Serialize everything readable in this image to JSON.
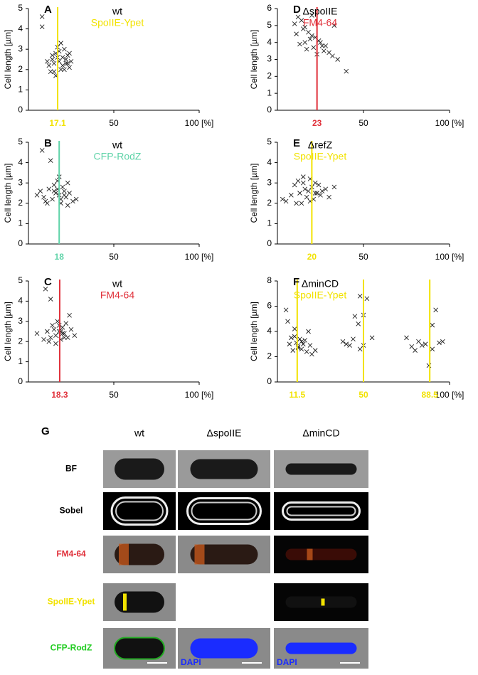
{
  "chart_data": [
    {
      "type": "scatter",
      "panel": "A",
      "title": "wt",
      "subtitle": "SpoIIE-Ypet",
      "subtitle_color": "#f2e200",
      "ylabel": "Cell length [µm]",
      "xlim": [
        0,
        100
      ],
      "ylim": [
        0,
        5
      ],
      "yticks": [
        0,
        1,
        2,
        3,
        4,
        5
      ],
      "xticks": [
        50,
        {
          "value": 100,
          "label": "100 [%]"
        }
      ],
      "vlines": [
        17.1
      ],
      "vline_color": "#f2e200",
      "x": [
        8,
        8,
        12,
        14,
        15,
        16,
        17,
        18,
        19,
        20,
        21,
        22,
        23,
        24,
        25,
        13,
        15,
        18,
        20,
        22,
        24,
        16,
        19,
        21,
        11,
        14,
        23,
        17
      ],
      "y": [
        4.6,
        4.1,
        2.2,
        2.5,
        1.9,
        2.8,
        3.1,
        2.4,
        2.0,
        2.6,
        3.0,
        2.3,
        2.7,
        2.1,
        2.4,
        1.9,
        2.3,
        2.9,
        2.2,
        2.5,
        2.8,
        1.7,
        3.3,
        2.0,
        2.4,
        2.7,
        2.3,
        2.6
      ]
    },
    {
      "type": "scatter",
      "panel": "B",
      "title": "wt",
      "subtitle": "CFP-RodZ",
      "subtitle_color": "#5fd3a8",
      "ylabel": "Cell length [µm]",
      "xlim": [
        0,
        100
      ],
      "ylim": [
        0,
        5
      ],
      "yticks": [
        0,
        1,
        2,
        3,
        4,
        5
      ],
      "xticks": [
        50,
        {
          "value": 100,
          "label": "100 [%]"
        }
      ],
      "vlines": [
        18
      ],
      "vline_color": "#5fd3a8",
      "x": [
        8,
        13,
        5,
        7,
        9,
        11,
        12,
        14,
        15,
        16,
        17,
        18,
        19,
        20,
        21,
        22,
        23,
        24,
        26,
        28,
        10,
        15,
        18,
        21,
        23,
        17,
        19
      ],
      "y": [
        4.6,
        4.1,
        2.4,
        2.6,
        2.3,
        2.0,
        2.7,
        2.2,
        2.9,
        2.5,
        3.1,
        2.4,
        2.0,
        2.8,
        2.6,
        2.3,
        3.0,
        2.5,
        2.1,
        2.2,
        2.1,
        2.6,
        3.3,
        2.4,
        1.9,
        2.7,
        2.2
      ]
    },
    {
      "type": "scatter",
      "panel": "C",
      "title": "wt",
      "subtitle": "FM4-64",
      "subtitle_color": "#e0303a",
      "ylabel": "Cell length [µm]",
      "xlim": [
        0,
        100
      ],
      "ylim": [
        0,
        5
      ],
      "yticks": [
        0,
        1,
        2,
        3,
        4,
        5
      ],
      "xticks": [
        50,
        {
          "value": 100,
          "label": "100 [%]"
        }
      ],
      "vlines": [
        18.3
      ],
      "vline_color": "#e0303a",
      "x": [
        10,
        13,
        5,
        9,
        11,
        13,
        14,
        15,
        16,
        17,
        18,
        19,
        20,
        21,
        22,
        23,
        24,
        25,
        27,
        12,
        16,
        19,
        21,
        18,
        20
      ],
      "y": [
        4.6,
        4.1,
        2.4,
        2.1,
        2.5,
        2.2,
        2.8,
        2.6,
        2.3,
        3.0,
        2.5,
        2.1,
        2.7,
        2.4,
        2.9,
        2.2,
        3.3,
        2.6,
        2.3,
        2.0,
        1.9,
        2.5,
        2.2,
        2.8,
        2.4
      ]
    },
    {
      "type": "scatter",
      "panel": "D",
      "title": "ΔspoIIE",
      "subtitle": "FM4-64",
      "subtitle_color": "#e0303a",
      "ylabel": "Cell length [µm]",
      "xlim": [
        0,
        100
      ],
      "ylim": [
        0,
        6
      ],
      "yticks": [
        0,
        1,
        2,
        3,
        4,
        5,
        6
      ],
      "xticks": [
        50,
        {
          "value": 100,
          "label": "100 [%]"
        }
      ],
      "vlines": [
        23
      ],
      "vline_color": "#e0303a",
      "x": [
        10,
        12,
        14,
        16,
        18,
        20,
        22,
        24,
        26,
        11,
        13,
        15,
        17,
        19,
        21,
        23,
        25,
        27,
        30,
        33,
        35,
        40,
        28,
        32,
        20,
        16
      ],
      "y": [
        5.1,
        5.5,
        5.3,
        4.9,
        4.6,
        5.6,
        4.3,
        4.1,
        3.8,
        4.5,
        3.9,
        4.8,
        3.6,
        4.2,
        3.7,
        3.3,
        4.0,
        3.5,
        3.4,
        5.0,
        3.0,
        2.3,
        3.8,
        3.2,
        4.4,
        4.0
      ]
    },
    {
      "type": "scatter",
      "panel": "E",
      "title": "ΔrefZ",
      "subtitle": "SpoIIE-Ypet",
      "subtitle_color": "#f2e200",
      "ylabel": "Cell length [µm]",
      "xlim": [
        0,
        100
      ],
      "ylim": [
        0,
        5
      ],
      "yticks": [
        0,
        1,
        2,
        3,
        4,
        5
      ],
      "xticks": [
        50,
        {
          "value": 100,
          "label": "100 [%]"
        }
      ],
      "vlines": [
        20
      ],
      "vline_color": "#f2e200",
      "x": [
        3,
        5,
        8,
        10,
        12,
        13,
        14,
        15,
        16,
        17,
        18,
        19,
        20,
        21,
        22,
        23,
        24,
        25,
        26,
        28,
        30,
        33,
        11,
        15,
        19,
        22
      ],
      "y": [
        2.2,
        2.1,
        2.4,
        2.9,
        3.1,
        2.5,
        2.0,
        3.0,
        2.7,
        2.3,
        2.6,
        3.2,
        2.8,
        2.2,
        3.0,
        2.5,
        2.9,
        2.4,
        2.6,
        2.7,
        2.3,
        2.8,
        2.0,
        3.3,
        2.1,
        2.5
      ]
    },
    {
      "type": "scatter",
      "panel": "F",
      "title": "ΔminCD",
      "subtitle": "SpoIIE-Ypet",
      "subtitle_color": "#f2e200",
      "ylabel": "Cell length [µm]",
      "xlim": [
        0,
        100
      ],
      "ylim": [
        0,
        8
      ],
      "yticks": [
        0,
        2,
        4,
        6,
        8
      ],
      "xticks": [
        {
          "value": 100,
          "label": "100 [%]"
        }
      ],
      "vlines": [
        11.5,
        50,
        88.5
      ],
      "vline_color": "#f2e200",
      "x": [
        5,
        6,
        7,
        8,
        9,
        10,
        11,
        12,
        13,
        14,
        15,
        16,
        17,
        18,
        19,
        20,
        22,
        10,
        12,
        14,
        38,
        40,
        42,
        44,
        45,
        47,
        48,
        50,
        52,
        55,
        48,
        50,
        75,
        78,
        80,
        82,
        84,
        86,
        88,
        90,
        92,
        94,
        96,
        90
      ],
      "y": [
        5.7,
        4.8,
        3.0,
        3.5,
        2.5,
        4.2,
        3.1,
        2.8,
        3.4,
        2.6,
        3.0,
        3.3,
        2.4,
        4.0,
        2.9,
        2.2,
        2.5,
        3.6,
        2.7,
        3.2,
        3.2,
        3.0,
        2.9,
        3.4,
        5.2,
        4.6,
        6.8,
        5.3,
        6.6,
        3.5,
        2.6,
        2.9,
        3.5,
        2.8,
        2.5,
        3.2,
        2.9,
        3.0,
        1.3,
        2.6,
        5.7,
        3.1,
        3.2,
        4.5
      ]
    }
  ],
  "panel_g": {
    "label": "G",
    "columns": [
      "wt",
      "ΔspoIIE",
      "ΔminCD"
    ],
    "rows": [
      "BF",
      "Sobel",
      "FM4-64",
      "SpoIIE-Ypet",
      "CFP-RodZ"
    ],
    "stain": "DAPI"
  }
}
